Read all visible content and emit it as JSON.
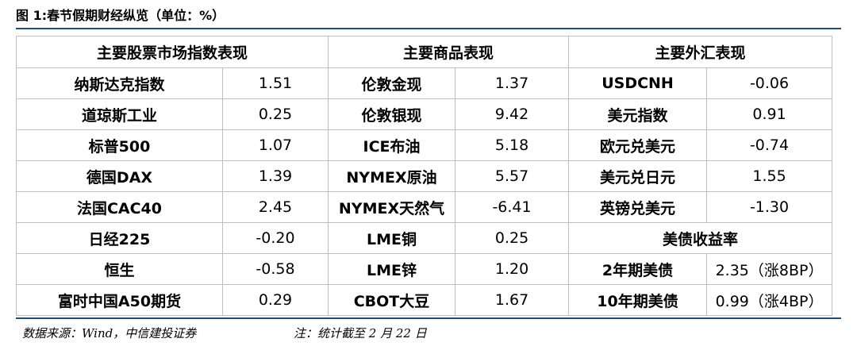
{
  "title": "图 1:春节假期财经纵览（单位：%）",
  "table": {
    "headers": [
      "主要股票市场指数表现",
      "主要商品表现",
      "主要外汇表现"
    ],
    "stocks": [
      [
        "纳斯达克指数",
        "1.51"
      ],
      [
        "道琼斯工业",
        "0.25"
      ],
      [
        "标普500",
        "1.07"
      ],
      [
        "德国DAX",
        "1.39"
      ],
      [
        "法国CAC40",
        "2.45"
      ],
      [
        "日经225",
        "-0.20"
      ],
      [
        "恒生",
        "-0.58"
      ],
      [
        "富时中国A50期货",
        "0.29"
      ]
    ],
    "commodities": [
      [
        "伦敦金现",
        "1.37"
      ],
      [
        "伦敦银现",
        "9.42"
      ],
      [
        "ICE布油",
        "5.18"
      ],
      [
        "NYMEX原油",
        "5.57"
      ],
      [
        "NYMEX天然气",
        "-6.41"
      ],
      [
        "LME铜",
        "0.25"
      ],
      [
        "LME锌",
        "1.20"
      ],
      [
        "CBOT大豆",
        "1.67"
      ]
    ],
    "fx": [
      [
        "USDCNH",
        "-0.06"
      ],
      [
        "美元指数",
        "0.91"
      ],
      [
        "欧元兑美元",
        "-0.74"
      ],
      [
        "美元兑日元",
        "1.55"
      ],
      [
        "英镑兑美元",
        "-1.30"
      ]
    ],
    "treasury_title": "美债收益率",
    "treasury": [
      [
        "2年期美债",
        "2.35（涨8BP）"
      ],
      [
        "10年期美债",
        "0.99（涨4BP）"
      ]
    ]
  },
  "footer": {
    "source": "数据来源：Wind，中信建投证券",
    "note": "注：统计截至 2 月 22 日"
  }
}
